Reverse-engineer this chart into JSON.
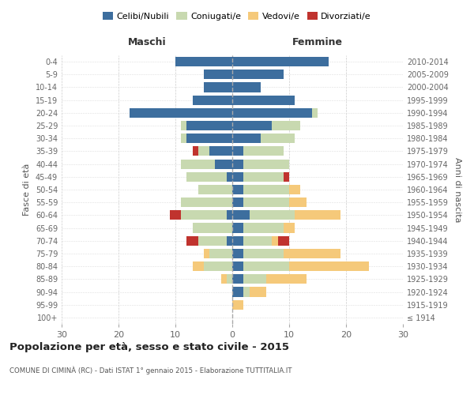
{
  "age_groups": [
    "100+",
    "95-99",
    "90-94",
    "85-89",
    "80-84",
    "75-79",
    "70-74",
    "65-69",
    "60-64",
    "55-59",
    "50-54",
    "45-49",
    "40-44",
    "35-39",
    "30-34",
    "25-29",
    "20-24",
    "15-19",
    "10-14",
    "5-9",
    "0-4"
  ],
  "birth_years": [
    "≤ 1914",
    "1915-1919",
    "1920-1924",
    "1925-1929",
    "1930-1934",
    "1935-1939",
    "1940-1944",
    "1945-1949",
    "1950-1954",
    "1955-1959",
    "1960-1964",
    "1965-1969",
    "1970-1974",
    "1975-1979",
    "1980-1984",
    "1985-1989",
    "1990-1994",
    "1995-1999",
    "2000-2004",
    "2005-2009",
    "2010-2014"
  ],
  "maschi": {
    "celibi": [
      0,
      0,
      0,
      0,
      0,
      0,
      1,
      0,
      1,
      0,
      0,
      1,
      3,
      4,
      8,
      8,
      18,
      7,
      5,
      5,
      10
    ],
    "coniugati": [
      0,
      0,
      0,
      1,
      5,
      4,
      5,
      7,
      8,
      9,
      6,
      7,
      6,
      2,
      1,
      1,
      0,
      0,
      0,
      0,
      0
    ],
    "vedovi": [
      0,
      0,
      0,
      1,
      2,
      1,
      0,
      0,
      0,
      0,
      0,
      0,
      0,
      0,
      0,
      0,
      0,
      0,
      0,
      0,
      0
    ],
    "divorziati": [
      0,
      0,
      0,
      0,
      0,
      0,
      2,
      0,
      2,
      0,
      0,
      0,
      0,
      1,
      0,
      0,
      0,
      0,
      0,
      0,
      0
    ]
  },
  "femmine": {
    "nubili": [
      0,
      0,
      2,
      2,
      2,
      2,
      2,
      2,
      3,
      2,
      2,
      2,
      2,
      2,
      5,
      7,
      14,
      11,
      5,
      9,
      17
    ],
    "coniugate": [
      0,
      0,
      1,
      4,
      8,
      7,
      5,
      7,
      8,
      8,
      8,
      7,
      8,
      7,
      6,
      5,
      1,
      0,
      0,
      0,
      0
    ],
    "vedove": [
      0,
      2,
      3,
      7,
      14,
      10,
      1,
      2,
      8,
      3,
      2,
      0,
      0,
      0,
      0,
      0,
      0,
      0,
      0,
      0,
      0
    ],
    "divorziate": [
      0,
      0,
      0,
      0,
      0,
      0,
      2,
      0,
      0,
      0,
      0,
      1,
      0,
      0,
      0,
      0,
      0,
      0,
      0,
      0,
      0
    ]
  },
  "color_celibi": "#3d6e9e",
  "color_coniugati": "#c8d9b0",
  "color_vedovi": "#f5c97a",
  "color_divorziati": "#c0332e",
  "xlim": 30,
  "title": "Popolazione per età, sesso e stato civile - 2015",
  "subtitle": "COMUNE DI CIMINÀ (RC) - Dati ISTAT 1° gennaio 2015 - Elaborazione TUTTITALIA.IT",
  "ylabel_left": "Fasce di età",
  "ylabel_right": "Anni di nascita",
  "xlabel_maschi": "Maschi",
  "xlabel_femmine": "Femmine",
  "bg_color": "#ffffff"
}
